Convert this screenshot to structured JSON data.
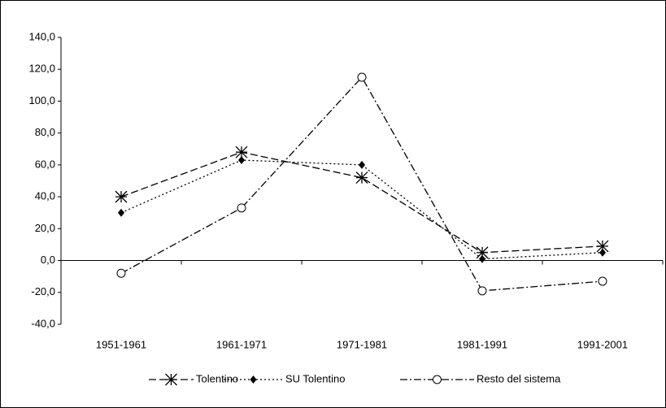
{
  "chart_data": {
    "type": "line",
    "categories": [
      "1951-1961",
      "1961-1971",
      "1971-1981",
      "1981-1991",
      "1991-2001"
    ],
    "series": [
      {
        "name": "Tolentino",
        "color": "#000000",
        "dash": "9,4",
        "marker": "asterisk",
        "values": [
          40,
          68,
          52,
          5,
          9
        ]
      },
      {
        "name": "SU Tolentino",
        "color": "#000000",
        "dash": "2,3",
        "marker": "diamond",
        "values": [
          30,
          63,
          60,
          1,
          5
        ]
      },
      {
        "name": "Resto del sistema",
        "color": "#000000",
        "dash": "9,3,2,3",
        "marker": "circle",
        "values": [
          -8,
          33,
          115,
          -19,
          -13
        ]
      }
    ],
    "ylim": [
      -40,
      140
    ],
    "yticks": [
      {
        "value": -40,
        "label": "-40,0"
      },
      {
        "value": -20,
        "label": "-20,0"
      },
      {
        "value": 0,
        "label": "0,0"
      },
      {
        "value": 20,
        "label": "20,0"
      },
      {
        "value": 40,
        "label": "40,0"
      },
      {
        "value": 60,
        "label": "60,0"
      },
      {
        "value": 80,
        "label": "80,0"
      },
      {
        "value": 100,
        "label": "100,0"
      },
      {
        "value": 120,
        "label": "120,0"
      },
      {
        "value": 140,
        "label": "140,0"
      }
    ],
    "grid": false,
    "legend": "bottom"
  }
}
